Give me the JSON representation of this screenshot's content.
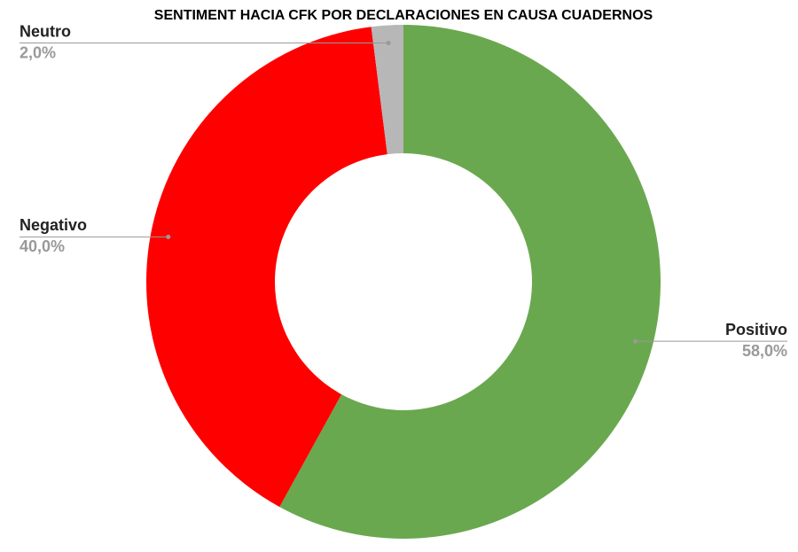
{
  "chart_data": {
    "type": "donut",
    "title": "SENTIMENT HACIA CFK POR DECLARACIONES EN CAUSA CUADERNOS",
    "categories": [
      "Positivo",
      "Negativo",
      "Neutro"
    ],
    "values": [
      58,
      40,
      2
    ],
    "value_labels": [
      "58,0%",
      "40,0%",
      "2,0%"
    ],
    "colors": [
      "#6aa84f",
      "#ff0000",
      "#b7b7b7"
    ]
  }
}
